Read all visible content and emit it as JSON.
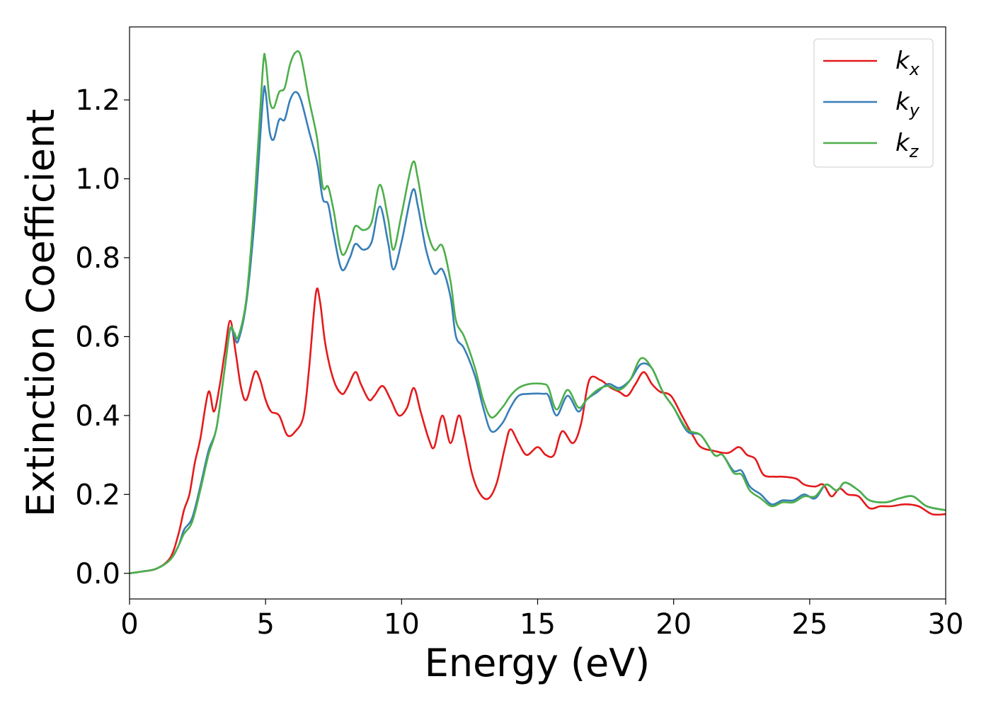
{
  "chart_data": {
    "type": "line",
    "xlabel": "Energy (eV)",
    "ylabel": "Extinction Coefficient",
    "xlim": [
      0,
      30
    ],
    "ylim": [
      -0.065,
      1.385
    ],
    "x_ticks": [
      "0",
      "5",
      "10",
      "15",
      "20",
      "25",
      "30"
    ],
    "y_ticks": [
      "0.0",
      "0.2",
      "0.4",
      "0.6",
      "0.8",
      "1.0",
      "1.2"
    ],
    "grid": false,
    "legend_position": "top-right",
    "series": [
      {
        "name": "k",
        "subscript": "x",
        "color": "#e41a1c",
        "points": [
          [
            0,
            0
          ],
          [
            0.5,
            0.005
          ],
          [
            1,
            0.012
          ],
          [
            1.5,
            0.04
          ],
          [
            1.8,
            0.1
          ],
          [
            2,
            0.16
          ],
          [
            2.2,
            0.2
          ],
          [
            2.4,
            0.28
          ],
          [
            2.6,
            0.34
          ],
          [
            2.9,
            0.46
          ],
          [
            3.1,
            0.41
          ],
          [
            3.3,
            0.47
          ],
          [
            3.5,
            0.56
          ],
          [
            3.7,
            0.64
          ],
          [
            3.9,
            0.56
          ],
          [
            4.1,
            0.47
          ],
          [
            4.3,
            0.44
          ],
          [
            4.6,
            0.51
          ],
          [
            4.8,
            0.49
          ],
          [
            5.0,
            0.44
          ],
          [
            5.2,
            0.41
          ],
          [
            5.5,
            0.4
          ],
          [
            5.8,
            0.35
          ],
          [
            6.1,
            0.36
          ],
          [
            6.4,
            0.4
          ],
          [
            6.6,
            0.52
          ],
          [
            6.85,
            0.71
          ],
          [
            7.0,
            0.69
          ],
          [
            7.2,
            0.58
          ],
          [
            7.5,
            0.49
          ],
          [
            7.8,
            0.455
          ],
          [
            8.0,
            0.47
          ],
          [
            8.3,
            0.51
          ],
          [
            8.5,
            0.48
          ],
          [
            8.8,
            0.44
          ],
          [
            9.0,
            0.45
          ],
          [
            9.3,
            0.475
          ],
          [
            9.6,
            0.44
          ],
          [
            9.9,
            0.4
          ],
          [
            10.2,
            0.42
          ],
          [
            10.45,
            0.47
          ],
          [
            10.7,
            0.41
          ],
          [
            11.0,
            0.34
          ],
          [
            11.2,
            0.32
          ],
          [
            11.5,
            0.4
          ],
          [
            11.8,
            0.33
          ],
          [
            12.1,
            0.4
          ],
          [
            12.3,
            0.35
          ],
          [
            12.6,
            0.25
          ],
          [
            12.9,
            0.2
          ],
          [
            13.2,
            0.19
          ],
          [
            13.5,
            0.23
          ],
          [
            13.8,
            0.32
          ],
          [
            14.0,
            0.365
          ],
          [
            14.3,
            0.33
          ],
          [
            14.6,
            0.3
          ],
          [
            15.0,
            0.32
          ],
          [
            15.3,
            0.3
          ],
          [
            15.6,
            0.3
          ],
          [
            15.9,
            0.36
          ],
          [
            16.3,
            0.33
          ],
          [
            16.6,
            0.38
          ],
          [
            16.9,
            0.49
          ],
          [
            17.3,
            0.49
          ],
          [
            17.7,
            0.47
          ],
          [
            18.0,
            0.46
          ],
          [
            18.3,
            0.45
          ],
          [
            18.6,
            0.48
          ],
          [
            18.9,
            0.51
          ],
          [
            19.2,
            0.48
          ],
          [
            19.5,
            0.46
          ],
          [
            19.9,
            0.45
          ],
          [
            20.3,
            0.4
          ],
          [
            20.7,
            0.35
          ],
          [
            21.0,
            0.32
          ],
          [
            21.5,
            0.31
          ],
          [
            22.0,
            0.305
          ],
          [
            22.4,
            0.32
          ],
          [
            22.7,
            0.3
          ],
          [
            23.0,
            0.29
          ],
          [
            23.3,
            0.25
          ],
          [
            23.7,
            0.245
          ],
          [
            24.0,
            0.245
          ],
          [
            24.5,
            0.24
          ],
          [
            24.8,
            0.225
          ],
          [
            25.2,
            0.22
          ],
          [
            25.5,
            0.225
          ],
          [
            25.8,
            0.195
          ],
          [
            26.1,
            0.215
          ],
          [
            26.4,
            0.2
          ],
          [
            26.8,
            0.195
          ],
          [
            27.2,
            0.165
          ],
          [
            27.6,
            0.17
          ],
          [
            28.0,
            0.17
          ],
          [
            28.5,
            0.175
          ],
          [
            29.0,
            0.17
          ],
          [
            29.5,
            0.15
          ],
          [
            30,
            0.15
          ]
        ]
      },
      {
        "name": "k",
        "subscript": "y",
        "color": "#377eb8",
        "points": [
          [
            0,
            0
          ],
          [
            0.5,
            0.005
          ],
          [
            1,
            0.012
          ],
          [
            1.5,
            0.035
          ],
          [
            1.8,
            0.07
          ],
          [
            2,
            0.11
          ],
          [
            2.3,
            0.14
          ],
          [
            2.6,
            0.22
          ],
          [
            2.9,
            0.31
          ],
          [
            3.2,
            0.37
          ],
          [
            3.5,
            0.52
          ],
          [
            3.7,
            0.62
          ],
          [
            3.85,
            0.6
          ],
          [
            4.0,
            0.59
          ],
          [
            4.3,
            0.69
          ],
          [
            4.6,
            0.9
          ],
          [
            4.9,
            1.2
          ],
          [
            5.0,
            1.22
          ],
          [
            5.15,
            1.12
          ],
          [
            5.3,
            1.1
          ],
          [
            5.5,
            1.15
          ],
          [
            5.7,
            1.15
          ],
          [
            5.9,
            1.2
          ],
          [
            6.1,
            1.22
          ],
          [
            6.3,
            1.2
          ],
          [
            6.6,
            1.12
          ],
          [
            6.9,
            1.04
          ],
          [
            7.1,
            0.95
          ],
          [
            7.3,
            0.935
          ],
          [
            7.5,
            0.86
          ],
          [
            7.8,
            0.77
          ],
          [
            8.1,
            0.8
          ],
          [
            8.3,
            0.835
          ],
          [
            8.6,
            0.82
          ],
          [
            8.9,
            0.84
          ],
          [
            9.2,
            0.93
          ],
          [
            9.5,
            0.84
          ],
          [
            9.7,
            0.77
          ],
          [
            10.0,
            0.84
          ],
          [
            10.4,
            0.97
          ],
          [
            10.6,
            0.93
          ],
          [
            10.9,
            0.82
          ],
          [
            11.2,
            0.76
          ],
          [
            11.5,
            0.77
          ],
          [
            11.8,
            0.7
          ],
          [
            12.0,
            0.6
          ],
          [
            12.3,
            0.57
          ],
          [
            12.7,
            0.5
          ],
          [
            13.0,
            0.42
          ],
          [
            13.3,
            0.36
          ],
          [
            13.7,
            0.38
          ],
          [
            14.0,
            0.42
          ],
          [
            14.3,
            0.45
          ],
          [
            14.7,
            0.455
          ],
          [
            15.2,
            0.455
          ],
          [
            15.4,
            0.45
          ],
          [
            15.7,
            0.4
          ],
          [
            16.1,
            0.45
          ],
          [
            16.5,
            0.41
          ],
          [
            16.8,
            0.44
          ],
          [
            17.2,
            0.46
          ],
          [
            17.6,
            0.48
          ],
          [
            18.0,
            0.47
          ],
          [
            18.4,
            0.49
          ],
          [
            18.8,
            0.53
          ],
          [
            19.2,
            0.52
          ],
          [
            19.6,
            0.46
          ],
          [
            20.0,
            0.42
          ],
          [
            20.5,
            0.36
          ],
          [
            21.0,
            0.35
          ],
          [
            21.5,
            0.3
          ],
          [
            21.8,
            0.3
          ],
          [
            22.2,
            0.26
          ],
          [
            22.5,
            0.26
          ],
          [
            22.8,
            0.22
          ],
          [
            23.2,
            0.2
          ],
          [
            23.6,
            0.175
          ],
          [
            24.0,
            0.185
          ],
          [
            24.4,
            0.185
          ],
          [
            24.8,
            0.2
          ],
          [
            25.2,
            0.19
          ],
          [
            25.6,
            0.225
          ],
          [
            26.0,
            0.21
          ],
          [
            26.3,
            0.23
          ],
          [
            26.8,
            0.21
          ],
          [
            27.2,
            0.185
          ],
          [
            27.8,
            0.18
          ],
          [
            28.3,
            0.19
          ],
          [
            28.8,
            0.195
          ],
          [
            29.3,
            0.17
          ],
          [
            30,
            0.16
          ]
        ]
      },
      {
        "name": "k",
        "subscript": "z",
        "color": "#4daf4a",
        "points": [
          [
            0,
            0
          ],
          [
            0.5,
            0.005
          ],
          [
            1,
            0.012
          ],
          [
            1.5,
            0.035
          ],
          [
            1.8,
            0.07
          ],
          [
            2,
            0.1
          ],
          [
            2.3,
            0.13
          ],
          [
            2.6,
            0.21
          ],
          [
            2.9,
            0.3
          ],
          [
            3.2,
            0.37
          ],
          [
            3.5,
            0.52
          ],
          [
            3.7,
            0.62
          ],
          [
            3.85,
            0.61
          ],
          [
            4.0,
            0.6
          ],
          [
            4.3,
            0.7
          ],
          [
            4.6,
            0.95
          ],
          [
            4.9,
            1.28
          ],
          [
            5.0,
            1.3
          ],
          [
            5.15,
            1.2
          ],
          [
            5.3,
            1.18
          ],
          [
            5.5,
            1.22
          ],
          [
            5.7,
            1.23
          ],
          [
            5.9,
            1.29
          ],
          [
            6.1,
            1.32
          ],
          [
            6.3,
            1.31
          ],
          [
            6.6,
            1.2
          ],
          [
            6.9,
            1.1
          ],
          [
            7.1,
            0.98
          ],
          [
            7.3,
            0.98
          ],
          [
            7.5,
            0.92
          ],
          [
            7.8,
            0.81
          ],
          [
            8.1,
            0.84
          ],
          [
            8.3,
            0.88
          ],
          [
            8.6,
            0.87
          ],
          [
            8.9,
            0.89
          ],
          [
            9.2,
            0.985
          ],
          [
            9.5,
            0.9
          ],
          [
            9.7,
            0.82
          ],
          [
            10.0,
            0.91
          ],
          [
            10.4,
            1.04
          ],
          [
            10.6,
            1.0
          ],
          [
            10.9,
            0.88
          ],
          [
            11.2,
            0.82
          ],
          [
            11.5,
            0.83
          ],
          [
            11.8,
            0.74
          ],
          [
            12.0,
            0.64
          ],
          [
            12.3,
            0.6
          ],
          [
            12.7,
            0.52
          ],
          [
            13.0,
            0.44
          ],
          [
            13.3,
            0.395
          ],
          [
            13.7,
            0.42
          ],
          [
            14.0,
            0.45
          ],
          [
            14.3,
            0.47
          ],
          [
            14.7,
            0.48
          ],
          [
            15.2,
            0.48
          ],
          [
            15.4,
            0.47
          ],
          [
            15.7,
            0.415
          ],
          [
            16.1,
            0.465
          ],
          [
            16.5,
            0.42
          ],
          [
            16.8,
            0.44
          ],
          [
            17.2,
            0.465
          ],
          [
            17.6,
            0.475
          ],
          [
            18.0,
            0.465
          ],
          [
            18.4,
            0.49
          ],
          [
            18.8,
            0.545
          ],
          [
            19.2,
            0.52
          ],
          [
            19.6,
            0.46
          ],
          [
            20.0,
            0.42
          ],
          [
            20.5,
            0.365
          ],
          [
            21.0,
            0.35
          ],
          [
            21.5,
            0.3
          ],
          [
            21.8,
            0.3
          ],
          [
            22.2,
            0.255
          ],
          [
            22.5,
            0.25
          ],
          [
            22.8,
            0.21
          ],
          [
            23.2,
            0.19
          ],
          [
            23.6,
            0.17
          ],
          [
            24.0,
            0.18
          ],
          [
            24.4,
            0.18
          ],
          [
            24.8,
            0.195
          ],
          [
            25.2,
            0.195
          ],
          [
            25.6,
            0.225
          ],
          [
            26.0,
            0.21
          ],
          [
            26.3,
            0.23
          ],
          [
            26.8,
            0.21
          ],
          [
            27.2,
            0.185
          ],
          [
            27.8,
            0.18
          ],
          [
            28.3,
            0.19
          ],
          [
            28.8,
            0.195
          ],
          [
            29.3,
            0.17
          ],
          [
            30,
            0.16
          ]
        ]
      }
    ]
  }
}
